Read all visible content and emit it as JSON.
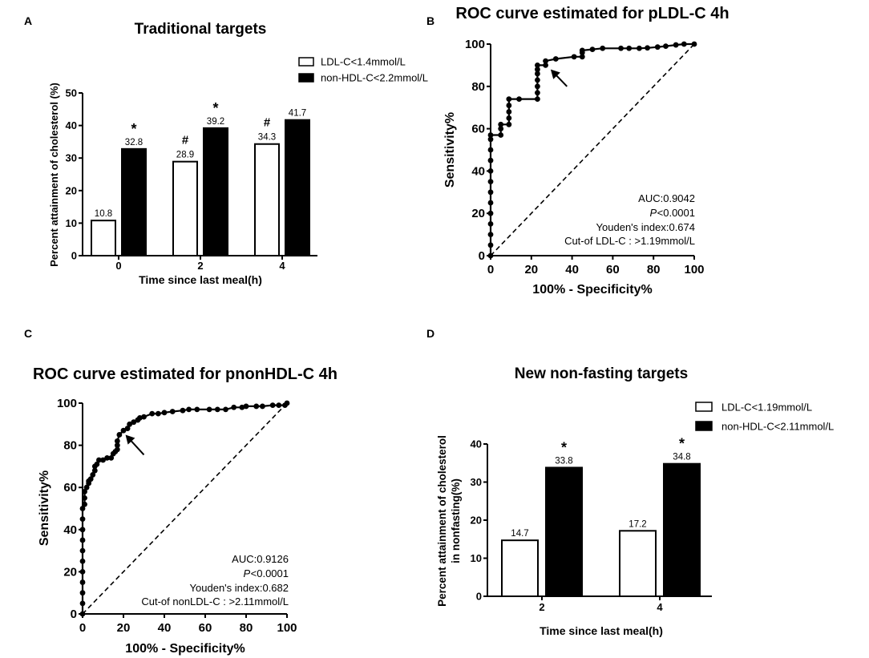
{
  "chart_data": [
    {
      "panel": "A",
      "type": "bar",
      "title": "Traditional targets",
      "xlabel": "Time since last meal(h)",
      "ylabel": "Percent attainment of cholesterol (%)",
      "ylim": [
        0,
        50
      ],
      "yticks": [
        "0",
        "10",
        "20",
        "30",
        "40",
        "50"
      ],
      "categories": [
        "0",
        "2",
        "4"
      ],
      "series": [
        {
          "name": "LDL-C<1.4mmol/L",
          "fill": "#ffffff",
          "values": [
            10.8,
            28.9,
            34.3
          ],
          "labels": [
            "10.8",
            "28.9",
            "34.3"
          ],
          "marks": [
            "",
            "#",
            "#"
          ]
        },
        {
          "name": "non-HDL-C<2.2mmol/L",
          "fill": "#000000",
          "values": [
            32.8,
            39.2,
            41.7
          ],
          "labels": [
            "32.8",
            "39.2",
            "41.7"
          ],
          "marks": [
            "*",
            "*",
            ""
          ]
        }
      ],
      "legend": "top-right"
    },
    {
      "panel": "B",
      "type": "line",
      "title": "ROC curve estimated for pLDL-C 4h",
      "xlabel": "100% - Specificity%",
      "ylabel": "Sensitivity%",
      "xlim": [
        0,
        100
      ],
      "ylim": [
        0,
        100
      ],
      "xticks": [
        "0",
        "20",
        "40",
        "60",
        "80",
        "100"
      ],
      "yticks": [
        "0",
        "20",
        "40",
        "60",
        "80",
        "100"
      ],
      "points": [
        [
          0,
          0
        ],
        [
          0,
          5
        ],
        [
          0,
          10
        ],
        [
          0,
          15
        ],
        [
          0,
          20
        ],
        [
          0,
          25
        ],
        [
          0,
          30
        ],
        [
          0,
          35
        ],
        [
          0,
          40
        ],
        [
          0,
          45
        ],
        [
          0,
          50
        ],
        [
          0,
          55
        ],
        [
          0,
          57
        ],
        [
          5,
          57
        ],
        [
          5,
          60
        ],
        [
          5,
          62
        ],
        [
          9,
          62
        ],
        [
          9,
          65
        ],
        [
          9,
          68
        ],
        [
          9,
          71
        ],
        [
          9,
          74
        ],
        [
          14,
          74
        ],
        [
          23,
          74
        ],
        [
          23,
          77
        ],
        [
          23,
          80
        ],
        [
          23,
          83
        ],
        [
          23,
          86
        ],
        [
          23,
          88
        ],
        [
          23,
          90
        ],
        [
          27,
          90
        ],
        [
          27,
          92
        ],
        [
          32,
          93
        ],
        [
          41,
          94
        ],
        [
          45,
          94
        ],
        [
          45,
          96
        ],
        [
          45,
          97
        ],
        [
          50,
          97.5
        ],
        [
          55,
          98
        ],
        [
          64,
          98
        ],
        [
          68,
          98
        ],
        [
          73,
          98
        ],
        [
          77,
          98.2
        ],
        [
          82,
          98.6
        ],
        [
          86,
          99
        ],
        [
          91,
          99.6
        ],
        [
          95,
          100
        ],
        [
          100,
          100
        ]
      ],
      "reference_line": [
        [
          0,
          0
        ],
        [
          100,
          100
        ]
      ],
      "arrow": {
        "from": [
          37.5,
          80
        ],
        "to": [
          29.5,
          88
        ]
      },
      "annotation": {
        "auc": "AUC:0.9042",
        "p_prefix": "P",
        "p_rest": "<0.0001",
        "youden": "Youden's index:0.674",
        "cutoff": "Cut-of LDL-C : >1.19mmol/L"
      }
    },
    {
      "panel": "C",
      "type": "line",
      "title": "ROC curve estimated for pnonHDL-C 4h",
      "xlabel": "100% - Specificity%",
      "ylabel": "Sensitivity%",
      "xlim": [
        0,
        100
      ],
      "ylim": [
        0,
        100
      ],
      "xticks": [
        "0",
        "20",
        "40",
        "60",
        "80",
        "100"
      ],
      "yticks": [
        "0",
        "20",
        "40",
        "60",
        "80",
        "100"
      ],
      "points": [
        [
          0,
          0
        ],
        [
          0,
          5
        ],
        [
          0,
          10
        ],
        [
          0,
          15
        ],
        [
          0,
          20
        ],
        [
          0,
          25
        ],
        [
          0,
          30
        ],
        [
          0,
          35
        ],
        [
          0,
          40
        ],
        [
          0,
          45
        ],
        [
          0,
          50
        ],
        [
          1,
          52
        ],
        [
          1,
          55
        ],
        [
          1,
          58
        ],
        [
          2,
          60
        ],
        [
          3,
          62
        ],
        [
          3,
          63
        ],
        [
          4,
          64
        ],
        [
          5,
          66
        ],
        [
          6,
          68
        ],
        [
          6,
          70
        ],
        [
          7,
          71
        ],
        [
          8,
          73
        ],
        [
          10,
          73
        ],
        [
          12,
          74
        ],
        [
          14,
          74
        ],
        [
          15,
          76
        ],
        [
          16,
          77
        ],
        [
          17,
          78
        ],
        [
          17,
          80
        ],
        [
          17,
          82
        ],
        [
          18,
          85
        ],
        [
          20,
          87
        ],
        [
          22,
          88
        ],
        [
          23,
          90
        ],
        [
          25,
          91
        ],
        [
          27,
          92
        ],
        [
          28,
          93
        ],
        [
          30,
          93.5
        ],
        [
          34,
          95
        ],
        [
          37,
          95
        ],
        [
          40,
          95.5
        ],
        [
          44,
          96
        ],
        [
          49,
          96.5
        ],
        [
          52,
          97
        ],
        [
          56,
          97
        ],
        [
          62,
          97
        ],
        [
          66,
          97
        ],
        [
          70,
          97
        ],
        [
          74,
          98
        ],
        [
          78,
          98
        ],
        [
          80,
          98.5
        ],
        [
          85,
          98.5
        ],
        [
          88,
          98.5
        ],
        [
          93,
          99
        ],
        [
          96,
          99
        ],
        [
          99,
          99
        ],
        [
          100,
          100
        ]
      ],
      "reference_line": [
        [
          0,
          0
        ],
        [
          100,
          100
        ]
      ],
      "arrow": {
        "from": [
          30,
          75.5
        ],
        "to": [
          21,
          85
        ]
      },
      "annotation": {
        "auc": "AUC:0.9126",
        "p_prefix": "P",
        "p_rest": "<0.0001",
        "youden": "Youden's index:0.682",
        "cutoff": "Cut-of nonLDL-C : >2.11mmol/L"
      }
    },
    {
      "panel": "D",
      "type": "bar",
      "title": "New non-fasting targets",
      "xlabel": "Time since last meal(h)",
      "ylabel": [
        "Percent attainment of cholesterol",
        "in nonfasting(%)"
      ],
      "ylim": [
        0,
        40
      ],
      "yticks": [
        "0",
        "10",
        "20",
        "30",
        "40"
      ],
      "categories": [
        "2",
        "4"
      ],
      "series": [
        {
          "name": "LDL-C<1.19mmol/L",
          "fill": "#ffffff",
          "values": [
            14.7,
            17.2
          ],
          "labels": [
            "14.7",
            "17.2"
          ],
          "marks": [
            "",
            ""
          ]
        },
        {
          "name": "non-HDL-C<2.11mmol/L",
          "fill": "#000000",
          "values": [
            33.8,
            34.8
          ],
          "labels": [
            "33.8",
            "34.8"
          ],
          "marks": [
            "*",
            "*"
          ]
        }
      ],
      "legend": "top-right"
    }
  ]
}
